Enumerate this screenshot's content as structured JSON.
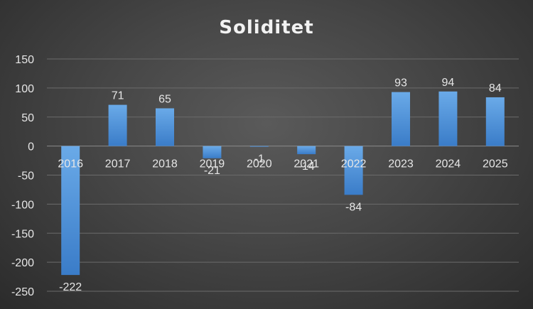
{
  "chart_data": {
    "type": "bar",
    "title": "Soliditet",
    "xlabel": "",
    "ylabel": "",
    "categories": [
      "2016",
      "2017",
      "2018",
      "2019",
      "2020",
      "2021",
      "2022",
      "2023",
      "2024",
      "2025"
    ],
    "values": [
      -222,
      71,
      65,
      -21,
      -1,
      -14,
      -84,
      93,
      94,
      84
    ],
    "data_labels": [
      "-222",
      "71",
      "65",
      "-21",
      "-1",
      "-14",
      "-84",
      "93",
      "94",
      "84"
    ],
    "y_ticks": [
      "150",
      "100",
      "50",
      "0",
      "-50",
      "-100",
      "-150",
      "-200",
      "-250"
    ],
    "ylim": [
      -250,
      150
    ],
    "grid": true,
    "legend": "none",
    "colors": {
      "bar_top": "#6aaae8",
      "bar_bottom": "#3a7cc8",
      "text": "#e6e6e6",
      "grid": "#6b6b6b"
    }
  }
}
